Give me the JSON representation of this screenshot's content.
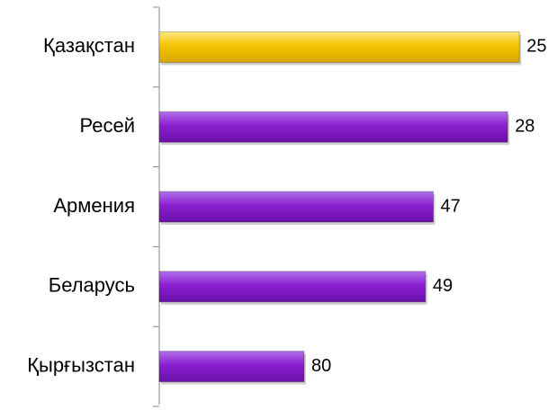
{
  "chart_data": {
    "type": "bar",
    "orientation": "horizontal",
    "categories": [
      "Қазақстан",
      "Ресей",
      "Армения",
      "Беларусь",
      "Қырғызстан"
    ],
    "values": [
      25,
      28,
      47,
      49,
      80
    ],
    "colors": [
      "#f5c400",
      "#8a1fd0",
      "#8a1fd0",
      "#8a1fd0",
      "#8a1fd0"
    ],
    "xlim": [
      117,
      0
    ],
    "grid": false
  }
}
